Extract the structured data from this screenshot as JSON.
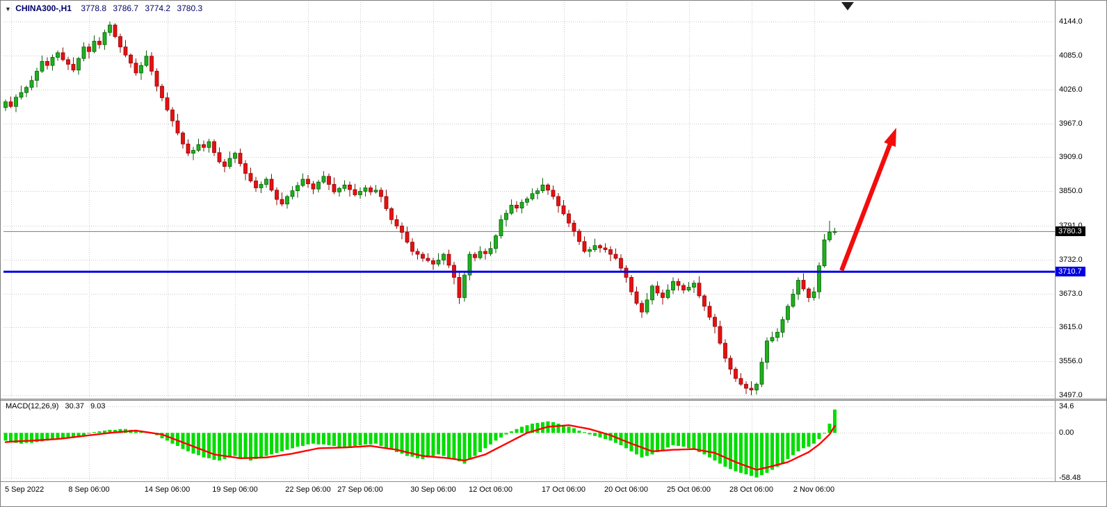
{
  "header": {
    "marker": "▼",
    "symbol": "CHINA300-,H1",
    "open": "3778.8",
    "high": "3786.7",
    "low": "3774.2",
    "close": "3780.3"
  },
  "colors": {
    "up": "#1db11d",
    "up_border": "#0a5c0a",
    "down": "#e81010",
    "down_border": "#8c0606",
    "grid": "#c9c9c9",
    "macd_bar": "#00dd00",
    "macd_signal": "#ff0000",
    "hline": "#0000e8",
    "arrow": "#f20d0d",
    "price_line": "#777777",
    "price_badge_bg": "#000000",
    "hline_badge_bg": "#0000e0"
  },
  "chart_data": {
    "type": "candlestick",
    "title": "CHINA300-,H1",
    "symbol": "CHINA300-,H1",
    "timeframe": "H1",
    "y_axis_ticks": [
      "4144.0",
      "4085.0",
      "4026.0",
      "3967.0",
      "3909.0",
      "3850.0",
      "3791.0",
      "3732.0",
      "3673.0",
      "3615.0",
      "3556.0",
      "3497.0"
    ],
    "y_range": [
      3497,
      4144
    ],
    "x_axis_labels": [
      "5 Sep 2022",
      "8 Sep 06:00",
      "14 Sep 06:00",
      "19 Sep 06:00",
      "22 Sep 06:00",
      "27 Sep 06:00",
      "30 Sep 06:00",
      "12 Oct 06:00",
      "17 Oct 06:00",
      "20 Oct 06:00",
      "25 Oct 06:00",
      "28 Oct 06:00",
      "2 Nov 06:00"
    ],
    "x_label_indices": [
      1,
      16,
      31,
      44,
      58,
      68,
      82,
      93,
      107,
      119,
      131,
      143,
      155
    ],
    "candles_ohlc": [
      [
        3995,
        4009,
        3989,
        4005
      ],
      [
        4005,
        4014,
        3994,
        3997
      ],
      [
        3997,
        4018,
        3987,
        4013
      ],
      [
        4013,
        4033,
        4009,
        4021
      ],
      [
        4021,
        4033,
        4013,
        4030
      ],
      [
        4030,
        4050,
        4025,
        4042
      ],
      [
        4042,
        4064,
        4030,
        4058
      ],
      [
        4058,
        4085,
        4055,
        4075
      ],
      [
        4075,
        4082,
        4061,
        4068
      ],
      [
        4068,
        4087,
        4059,
        4082
      ],
      [
        4082,
        4094,
        4076,
        4090
      ],
      [
        4090,
        4099,
        4075,
        4078
      ],
      [
        4078,
        4083,
        4060,
        4070
      ],
      [
        4070,
        4082,
        4056,
        4060
      ],
      [
        4060,
        4083,
        4052,
        4080
      ],
      [
        4080,
        4108,
        4075,
        4100
      ],
      [
        4100,
        4106,
        4080,
        4092
      ],
      [
        4092,
        4120,
        4089,
        4110
      ],
      [
        4110,
        4117,
        4097,
        4104
      ],
      [
        4104,
        4130,
        4095,
        4125
      ],
      [
        4125,
        4144,
        4119,
        4138
      ],
      [
        4138,
        4141,
        4115,
        4118
      ],
      [
        4118,
        4123,
        4090,
        4100
      ],
      [
        4100,
        4112,
        4082,
        4086
      ],
      [
        4086,
        4089,
        4064,
        4072
      ],
      [
        4072,
        4080,
        4050,
        4055
      ],
      [
        4055,
        4074,
        4043,
        4068
      ],
      [
        4068,
        4094,
        4065,
        4084
      ],
      [
        4084,
        4091,
        4051,
        4058
      ],
      [
        4058,
        4063,
        4023,
        4032
      ],
      [
        4032,
        4036,
        4006,
        4012
      ],
      [
        4012,
        4021,
        3988,
        3991
      ],
      [
        3991,
        3996,
        3962,
        3972
      ],
      [
        3972,
        3984,
        3947,
        3951
      ],
      [
        3951,
        3954,
        3924,
        3932
      ],
      [
        3932,
        3940,
        3911,
        3916
      ],
      [
        3916,
        3927,
        3904,
        3921
      ],
      [
        3921,
        3941,
        3918,
        3931
      ],
      [
        3931,
        3938,
        3919,
        3926
      ],
      [
        3926,
        3941,
        3917,
        3936
      ],
      [
        3936,
        3940,
        3911,
        3917
      ],
      [
        3917,
        3926,
        3898,
        3901
      ],
      [
        3901,
        3906,
        3883,
        3893
      ],
      [
        3893,
        3919,
        3889,
        3907
      ],
      [
        3907,
        3919,
        3899,
        3916
      ],
      [
        3916,
        3924,
        3893,
        3898
      ],
      [
        3898,
        3904,
        3869,
        3881
      ],
      [
        3881,
        3891,
        3865,
        3868
      ],
      [
        3868,
        3875,
        3849,
        3856
      ],
      [
        3856,
        3867,
        3847,
        3862
      ],
      [
        3862,
        3875,
        3856,
        3871
      ],
      [
        3871,
        3880,
        3849,
        3852
      ],
      [
        3852,
        3857,
        3826,
        3836
      ],
      [
        3836,
        3848,
        3824,
        3828
      ],
      [
        3828,
        3844,
        3820,
        3841
      ],
      [
        3841,
        3859,
        3836,
        3851
      ],
      [
        3851,
        3866,
        3839,
        3860
      ],
      [
        3860,
        3881,
        3857,
        3871
      ],
      [
        3871,
        3878,
        3856,
        3863
      ],
      [
        3863,
        3868,
        3845,
        3854
      ],
      [
        3854,
        3870,
        3848,
        3866
      ],
      [
        3866,
        3885,
        3863,
        3876
      ],
      [
        3876,
        3881,
        3852,
        3862
      ],
      [
        3862,
        3874,
        3845,
        3849
      ],
      [
        3849,
        3858,
        3841,
        3855
      ],
      [
        3855,
        3869,
        3850,
        3861
      ],
      [
        3861,
        3867,
        3841,
        3853
      ],
      [
        3853,
        3863,
        3841,
        3844
      ],
      [
        3844,
        3857,
        3837,
        3850
      ],
      [
        3850,
        3861,
        3841,
        3856
      ],
      [
        3856,
        3860,
        3843,
        3849
      ],
      [
        3849,
        3861,
        3846,
        3852
      ],
      [
        3852,
        3857,
        3831,
        3841
      ],
      [
        3841,
        3853,
        3816,
        3820
      ],
      [
        3820,
        3823,
        3793,
        3801
      ],
      [
        3801,
        3809,
        3785,
        3790
      ],
      [
        3790,
        3796,
        3767,
        3779
      ],
      [
        3779,
        3789,
        3759,
        3762
      ],
      [
        3762,
        3769,
        3739,
        3746
      ],
      [
        3746,
        3751,
        3732,
        3741
      ],
      [
        3741,
        3745,
        3728,
        3734
      ],
      [
        3734,
        3743,
        3727,
        3730
      ],
      [
        3730,
        3735,
        3714,
        3724
      ],
      [
        3724,
        3743,
        3720,
        3731
      ],
      [
        3731,
        3744,
        3723,
        3741
      ],
      [
        3741,
        3749,
        3717,
        3722
      ],
      [
        3722,
        3728,
        3689,
        3701
      ],
      [
        3701,
        3711,
        3655,
        3666
      ],
      [
        3666,
        3712,
        3659,
        3705
      ],
      [
        3705,
        3746,
        3696,
        3741
      ],
      [
        3741,
        3745,
        3729,
        3735
      ],
      [
        3735,
        3755,
        3732,
        3746
      ],
      [
        3746,
        3751,
        3732,
        3742
      ],
      [
        3742,
        3763,
        3738,
        3751
      ],
      [
        3751,
        3776,
        3743,
        3773
      ],
      [
        3773,
        3809,
        3768,
        3801
      ],
      [
        3801,
        3818,
        3789,
        3812
      ],
      [
        3812,
        3836,
        3809,
        3826
      ],
      [
        3826,
        3833,
        3814,
        3821
      ],
      [
        3821,
        3836,
        3812,
        3831
      ],
      [
        3831,
        3841,
        3825,
        3837
      ],
      [
        3837,
        3855,
        3834,
        3846
      ],
      [
        3846,
        3856,
        3836,
        3851
      ],
      [
        3851,
        3873,
        3847,
        3861
      ],
      [
        3861,
        3864,
        3844,
        3852
      ],
      [
        3852,
        3860,
        3836,
        3841
      ],
      [
        3841,
        3847,
        3813,
        3825
      ],
      [
        3825,
        3835,
        3808,
        3811
      ],
      [
        3811,
        3818,
        3788,
        3795
      ],
      [
        3795,
        3800,
        3772,
        3781
      ],
      [
        3781,
        3785,
        3757,
        3763
      ],
      [
        3763,
        3772,
        3743,
        3746
      ],
      [
        3746,
        3754,
        3736,
        3749
      ],
      [
        3749,
        3768,
        3745,
        3756
      ],
      [
        3756,
        3759,
        3744,
        3752
      ],
      [
        3752,
        3760,
        3744,
        3749
      ],
      [
        3749,
        3755,
        3729,
        3741
      ],
      [
        3741,
        3751,
        3731,
        3734
      ],
      [
        3734,
        3741,
        3710,
        3717
      ],
      [
        3717,
        3722,
        3692,
        3701
      ],
      [
        3701,
        3705,
        3670,
        3676
      ],
      [
        3676,
        3685,
        3653,
        3656
      ],
      [
        3656,
        3661,
        3631,
        3641
      ],
      [
        3641,
        3674,
        3637,
        3662
      ],
      [
        3662,
        3689,
        3654,
        3686
      ],
      [
        3686,
        3694,
        3669,
        3674
      ],
      [
        3674,
        3680,
        3654,
        3666
      ],
      [
        3666,
        3689,
        3663,
        3679
      ],
      [
        3679,
        3701,
        3672,
        3694
      ],
      [
        3694,
        3699,
        3678,
        3687
      ],
      [
        3687,
        3691,
        3673,
        3679
      ],
      [
        3679,
        3693,
        3676,
        3684
      ],
      [
        3684,
        3696,
        3674,
        3691
      ],
      [
        3691,
        3703,
        3665,
        3669
      ],
      [
        3669,
        3672,
        3643,
        3651
      ],
      [
        3651,
        3659,
        3627,
        3632
      ],
      [
        3632,
        3638,
        3604,
        3616
      ],
      [
        3616,
        3626,
        3584,
        3587
      ],
      [
        3587,
        3594,
        3554,
        3561
      ],
      [
        3561,
        3566,
        3533,
        3542
      ],
      [
        3542,
        3546,
        3520,
        3526
      ],
      [
        3526,
        3535,
        3513,
        3516
      ],
      [
        3516,
        3521,
        3499,
        3509
      ],
      [
        3509,
        3521,
        3497,
        3506
      ],
      [
        3506,
        3519,
        3498,
        3516
      ],
      [
        3516,
        3562,
        3511,
        3554
      ],
      [
        3554,
        3597,
        3542,
        3591
      ],
      [
        3591,
        3607,
        3588,
        3597
      ],
      [
        3597,
        3613,
        3590,
        3606
      ],
      [
        3606,
        3633,
        3597,
        3628
      ],
      [
        3628,
        3655,
        3622,
        3651
      ],
      [
        3651,
        3681,
        3648,
        3672
      ],
      [
        3672,
        3701,
        3662,
        3696
      ],
      [
        3696,
        3708,
        3677,
        3681
      ],
      [
        3681,
        3684,
        3658,
        3666
      ],
      [
        3666,
        3684,
        3661,
        3676
      ],
      [
        3676,
        3727,
        3664,
        3721
      ],
      [
        3721,
        3776,
        3718,
        3766
      ],
      [
        3766,
        3799,
        3762,
        3779
      ],
      [
        3778.8,
        3786.7,
        3774.2,
        3780.3
      ]
    ],
    "annotations": {
      "current_price_line": {
        "price": 3780.3,
        "label": "3780.3"
      },
      "horizontal_line": {
        "price": 3710.7,
        "label": "3710.7"
      },
      "trend_arrow": {
        "from_index": 160.3,
        "from_price": 3713,
        "to_index": 170.8,
        "to_price": 3960
      }
    },
    "indicator": {
      "name": "MACD(12,26,9)",
      "main_value": "30.37",
      "signal_value": "9.03",
      "y_axis_ticks": [
        "34.6",
        "0.00",
        "-58.48"
      ],
      "y_range": [
        -58.48,
        34.6
      ],
      "histogram": [
        -10,
        -11,
        -13,
        -14,
        -13,
        -13,
        -12,
        -11,
        -10,
        -9,
        -8,
        -7,
        -6,
        -5,
        -4,
        -3,
        -1,
        1,
        2,
        3,
        4,
        4,
        5,
        5,
        4,
        4,
        3,
        1,
        -1,
        -3,
        -7,
        -10,
        -14,
        -17,
        -21,
        -24,
        -27,
        -29,
        -32,
        -33,
        -35,
        -36,
        -34,
        -32,
        -30,
        -32,
        -34,
        -36,
        -34,
        -32,
        -30,
        -28,
        -26,
        -24,
        -22,
        -20,
        -18,
        -17,
        -15,
        -14,
        -15,
        -15,
        -16,
        -17,
        -19,
        -20,
        -19,
        -17,
        -16,
        -15,
        -15,
        -14,
        -17,
        -19,
        -22,
        -25,
        -27,
        -30,
        -31,
        -33,
        -34,
        -32,
        -30,
        -28,
        -30,
        -32,
        -34,
        -37,
        -40,
        -35,
        -30,
        -25,
        -20,
        -15,
        -10,
        -6,
        -2,
        2,
        5,
        8,
        10,
        12,
        13,
        14,
        15,
        14,
        12,
        10,
        8,
        6,
        3,
        1,
        -2,
        -4,
        -6,
        -8,
        -10,
        -13,
        -16,
        -20,
        -24,
        -28,
        -32,
        -30,
        -28,
        -25,
        -22,
        -19,
        -16,
        -17,
        -18,
        -20,
        -22,
        -25,
        -28,
        -32,
        -36,
        -40,
        -44,
        -47,
        -50,
        -52,
        -54,
        -56,
        -58,
        -55,
        -52,
        -48,
        -44,
        -39,
        -34,
        -29,
        -24,
        -20,
        -18,
        -14,
        -8,
        0,
        12,
        30.37
      ],
      "signal": [
        -12,
        -11.5,
        -11,
        -10.7,
        -10.4,
        -10,
        -9.6,
        -9.2,
        -8.8,
        -8.4,
        -8,
        -7.2,
        -6.4,
        -5.6,
        -4.8,
        -4,
        -3.2,
        -2.4,
        -1.6,
        -0.8,
        0,
        0.6,
        1.2,
        1.8,
        2.4,
        3,
        2,
        1,
        0,
        -1,
        -2,
        -4.6,
        -7.2,
        -9.8,
        -12.4,
        -15,
        -17.6,
        -20.2,
        -22.8,
        -25.4,
        -28,
        -29,
        -30,
        -31,
        -32,
        -33,
        -32.8,
        -32.6,
        -32.4,
        -32.2,
        -32,
        -31,
        -30,
        -29,
        -28,
        -27,
        -25.6,
        -24.2,
        -22.8,
        -21.4,
        -20,
        -19.8,
        -19.6,
        -19.4,
        -19.2,
        -19,
        -18.6,
        -18.2,
        -17.8,
        -17.4,
        -17,
        -18,
        -19,
        -20,
        -21,
        -22,
        -23.6,
        -25.2,
        -26.8,
        -28.4,
        -30,
        -30.6,
        -31.2,
        -31.8,
        -32.4,
        -33,
        -34,
        -35,
        -36,
        -34,
        -32,
        -30,
        -28,
        -24.5,
        -21,
        -17.5,
        -14,
        -10.5,
        -7,
        -3.5,
        0,
        2,
        4,
        6,
        8,
        8.5,
        9,
        9.5,
        10,
        8.8,
        7.5,
        6.3,
        5,
        3,
        1,
        -1,
        -3,
        -5.8,
        -8.5,
        -11.3,
        -14,
        -16.5,
        -19,
        -21.5,
        -24,
        -23.5,
        -23,
        -22.5,
        -22,
        -21.8,
        -21.5,
        -21.3,
        -21,
        -22.3,
        -23.5,
        -24.8,
        -26,
        -29,
        -32,
        -35,
        -38,
        -40.5,
        -43,
        -45.5,
        -48,
        -46.5,
        -45,
        -43.3,
        -41.5,
        -39.8,
        -38,
        -34.8,
        -31.5,
        -28.3,
        -25,
        -20,
        -15,
        -8.5,
        -2,
        9.03
      ]
    }
  }
}
